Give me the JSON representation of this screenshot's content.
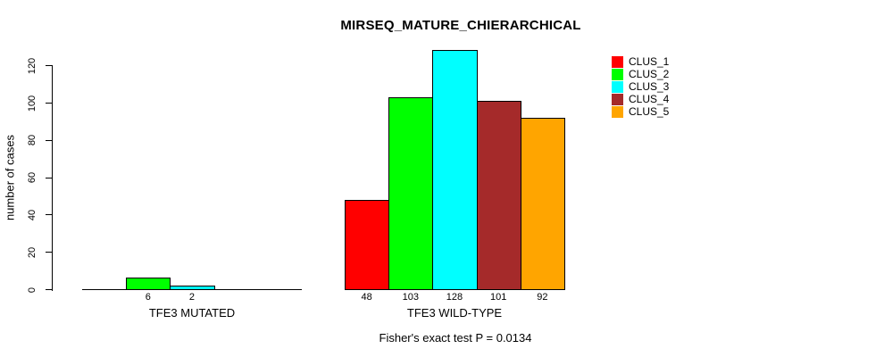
{
  "chart_data": {
    "type": "bar",
    "title": "MIRSEQ_MATURE_CHIERARCHICAL",
    "ylabel": "number of cases",
    "xlabel": "",
    "subtitle": "Fisher's exact test P = 0.0134",
    "yticks": [
      0,
      20,
      40,
      60,
      80,
      100,
      120
    ],
    "ylim": [
      0,
      130
    ],
    "grid": false,
    "legend_position": "top-right",
    "bar_value_labels_shown": true,
    "series": [
      {
        "name": "CLUS_1",
        "color": "#ff0000"
      },
      {
        "name": "CLUS_2",
        "color": "#00ff00"
      },
      {
        "name": "CLUS_3",
        "color": "#00ffff"
      },
      {
        "name": "CLUS_4",
        "color": "#a52a2a"
      },
      {
        "name": "CLUS_5",
        "color": "#ffa500"
      }
    ],
    "groups": [
      {
        "label": "TFE3 MUTATED",
        "values": [
          0,
          6,
          2,
          0,
          0
        ],
        "value_labels": [
          "",
          "6",
          "2",
          "",
          ""
        ]
      },
      {
        "label": "TFE3 WILD-TYPE",
        "values": [
          48,
          103,
          128,
          101,
          92
        ],
        "value_labels": [
          "48",
          "103",
          "128",
          "101",
          "92"
        ]
      }
    ]
  }
}
